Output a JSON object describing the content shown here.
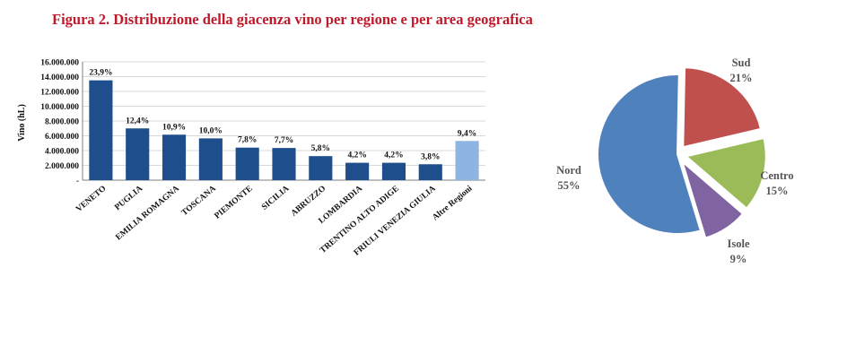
{
  "title": "Figura 2. Distribuzione della giacenza vino per regione e per area geografica",
  "colors": {
    "title": "#c0192b",
    "bar": "#1f4e8c",
    "bar_highlight": "#8db4e2",
    "grid": "#d9d9d9",
    "axis": "#7f7f7f"
  },
  "chart_data": [
    {
      "type": "bar",
      "ylabel": "Vino (hL)",
      "ylim": [
        0,
        16000000
      ],
      "yticks": [
        {
          "value": 0,
          "label": "-"
        },
        {
          "value": 2000000,
          "label": "2.000.000"
        },
        {
          "value": 4000000,
          "label": "4.000.000"
        },
        {
          "value": 6000000,
          "label": "6.000.000"
        },
        {
          "value": 8000000,
          "label": "8.000.000"
        },
        {
          "value": 10000000,
          "label": "10.000.000"
        },
        {
          "value": 12000000,
          "label": "12.000.000"
        },
        {
          "value": 14000000,
          "label": "14.000.000"
        },
        {
          "value": 16000000,
          "label": "16.000.000"
        }
      ],
      "grid": true,
      "categories": [
        "VENETO",
        "PUGLIA",
        "EMILIA ROMAGNA",
        "TOSCANA",
        "PIEMONTE",
        "SICILIA",
        "ABRUZZO",
        "LOMBARDIA",
        "TRENTINO ALTO ADIGE",
        "FRIULI VENEZIA GIULIA",
        "Altre Regioni"
      ],
      "values": [
        13500000,
        7000000,
        6150000,
        5650000,
        4400000,
        4350000,
        3250000,
        2350000,
        2350000,
        2150000,
        5300000
      ],
      "labels": [
        "23,9%",
        "12,4%",
        "10,9%",
        "10,0%",
        "7,8%",
        "7,7%",
        "5,8%",
        "4,2%",
        "4,2%",
        "3,8%",
        "9,4%"
      ],
      "highlight": "Altre Regioni"
    },
    {
      "type": "pie",
      "slices": [
        {
          "name": "Sud",
          "value": 21,
          "label": "21%",
          "color": "#c0504d",
          "exploded": true
        },
        {
          "name": "Centro",
          "value": 15,
          "label": "15%",
          "color": "#9bbb59",
          "exploded": true
        },
        {
          "name": "Isole",
          "value": 9,
          "label": "9%",
          "color": "#8064a2",
          "exploded": true
        },
        {
          "name": "Nord",
          "value": 55,
          "label": "55%",
          "color": "#4f81bd",
          "exploded": false
        }
      ]
    }
  ]
}
